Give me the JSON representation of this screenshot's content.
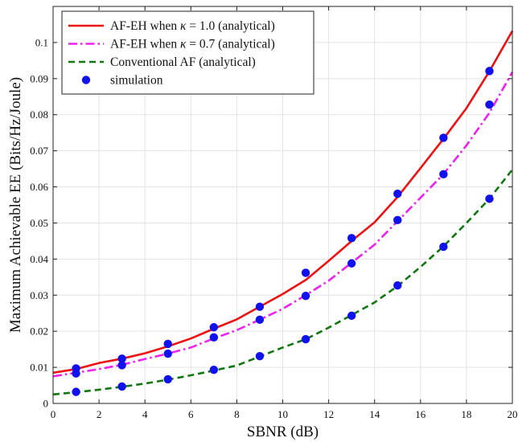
{
  "chart_data": {
    "type": "line",
    "xlabel": "SBNR (dB)",
    "ylabel": "Maximum Achievable EE (Bits/Hz/Joule)",
    "xlim": [
      0,
      20
    ],
    "ylim": [
      0,
      0.11
    ],
    "xticks": [
      0,
      2,
      4,
      6,
      8,
      10,
      12,
      14,
      16,
      18,
      20
    ],
    "yticks": [
      0,
      0.01,
      0.02,
      0.03,
      0.04,
      0.05,
      0.06,
      0.07,
      0.08,
      0.09,
      0.1
    ],
    "grid": true,
    "legend_position": "top-left",
    "series": [
      {
        "name": "AF-EH when κ = 1.0 (analytical)",
        "style": "solid",
        "color": "#ee1111",
        "x": [
          0,
          1,
          2,
          3,
          4,
          5,
          6,
          7,
          8,
          9,
          10,
          11,
          12,
          13,
          14,
          15,
          16,
          17,
          18,
          19,
          20
        ],
        "y": [
          0.0085,
          0.0095,
          0.0112,
          0.0124,
          0.0139,
          0.0158,
          0.018,
          0.0207,
          0.0233,
          0.0268,
          0.0303,
          0.0342,
          0.0395,
          0.045,
          0.0502,
          0.0572,
          0.0652,
          0.0733,
          0.0818,
          0.092,
          0.1032
        ]
      },
      {
        "name": "AF-EH when κ = 0.7 (analytical)",
        "style": "dashdot",
        "color": "#ee22ee",
        "x": [
          0,
          1,
          2,
          3,
          4,
          5,
          6,
          7,
          8,
          9,
          10,
          11,
          12,
          13,
          14,
          15,
          16,
          17,
          18,
          19,
          20
        ],
        "y": [
          0.0075,
          0.0085,
          0.0095,
          0.0107,
          0.0123,
          0.0138,
          0.0155,
          0.018,
          0.0203,
          0.0232,
          0.0262,
          0.03,
          0.034,
          0.039,
          0.044,
          0.0505,
          0.057,
          0.0635,
          0.0715,
          0.0805,
          0.0918
        ]
      },
      {
        "name": "Conventional AF (analytical)",
        "style": "dashed",
        "color": "#117711",
        "x": [
          0,
          1,
          2,
          3,
          4,
          5,
          6,
          7,
          8,
          9,
          10,
          11,
          12,
          13,
          14,
          15,
          16,
          17,
          18,
          19,
          20
        ],
        "y": [
          0.0025,
          0.0031,
          0.0038,
          0.0046,
          0.0055,
          0.0066,
          0.0078,
          0.0091,
          0.0105,
          0.013,
          0.0155,
          0.0178,
          0.021,
          0.0245,
          0.028,
          0.0325,
          0.0378,
          0.0435,
          0.05,
          0.0567,
          0.0648
        ]
      },
      {
        "name": "simulation",
        "style": "markers",
        "color": "#1111ee",
        "points": [
          [
            1,
            0.0097
          ],
          [
            1,
            0.0083
          ],
          [
            1,
            0.0032
          ],
          [
            3,
            0.0124
          ],
          [
            3,
            0.0106
          ],
          [
            3,
            0.0047
          ],
          [
            5,
            0.0165
          ],
          [
            5,
            0.0138
          ],
          [
            5,
            0.0067
          ],
          [
            7,
            0.0211
          ],
          [
            7,
            0.0183
          ],
          [
            7,
            0.0093
          ],
          [
            9,
            0.0268
          ],
          [
            9,
            0.0232
          ],
          [
            9,
            0.0131
          ],
          [
            11,
            0.0362
          ],
          [
            11,
            0.0298
          ],
          [
            11,
            0.0178
          ],
          [
            13,
            0.0458
          ],
          [
            13,
            0.0388
          ],
          [
            13,
            0.0243
          ],
          [
            15,
            0.0581
          ],
          [
            15,
            0.0508
          ],
          [
            15,
            0.0327
          ],
          [
            17,
            0.0736
          ],
          [
            17,
            0.0635
          ],
          [
            17,
            0.0434
          ],
          [
            19,
            0.0921
          ],
          [
            19,
            0.0828
          ],
          [
            19,
            0.0567
          ]
        ]
      }
    ]
  },
  "legend": {
    "entries": [
      {
        "pre": "AF-EH when ",
        "kappa": "κ",
        "post": " = 1.0 (analytical)"
      },
      {
        "pre": "AF-EH when ",
        "kappa": "κ",
        "post": " = 0.7 (analytical)"
      },
      {
        "pre": "Conventional AF (analytical)",
        "kappa": "",
        "post": ""
      },
      {
        "pre": "simulation",
        "kappa": "",
        "post": ""
      }
    ]
  }
}
